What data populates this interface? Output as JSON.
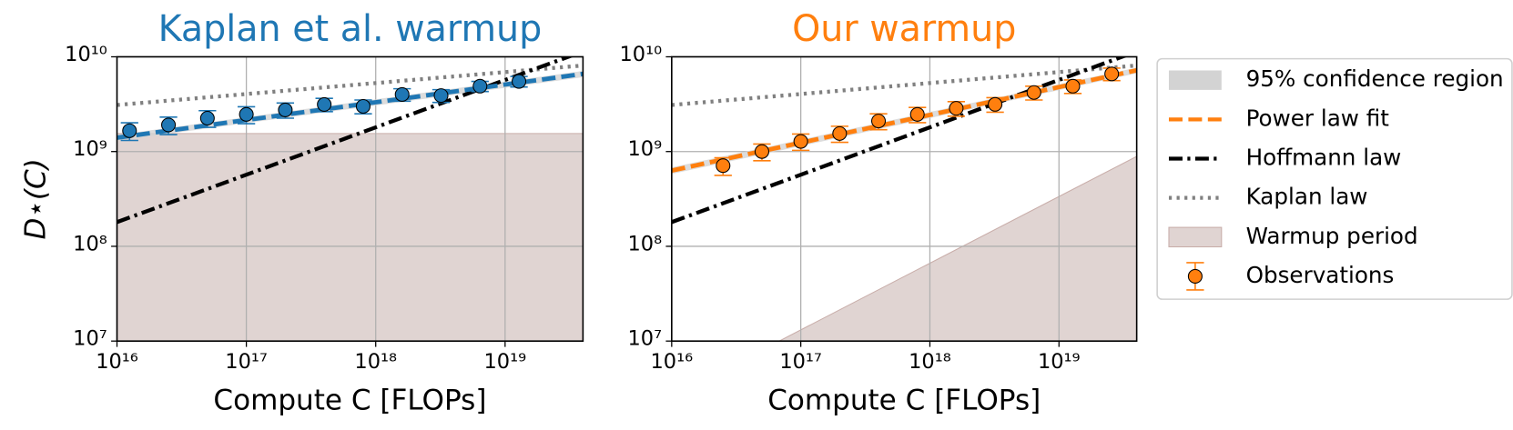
{
  "chart_data": [
    {
      "type": "line",
      "title": "Kaplan et al. warmup",
      "xlabel": "Compute C [FLOPs]",
      "ylabel": "D⋆(C)",
      "xscale": "log",
      "yscale": "log",
      "grid": true,
      "color": "#1f77b4",
      "xlim": [
        1e+16,
        4e+19
      ],
      "ylim": [
        10000000.0,
        10000000000.0
      ],
      "xticks": [
        {
          "value": 1e+16,
          "label": "10¹⁶"
        },
        {
          "value": 1e+17,
          "label": "10¹⁷"
        },
        {
          "value": 1e+18,
          "label": "10¹⁸"
        },
        {
          "value": 1e+19,
          "label": "10¹⁹"
        }
      ],
      "yticks": [
        {
          "value": 10000000.0,
          "label": "10⁷"
        },
        {
          "value": 100000000.0,
          "label": "10⁸"
        },
        {
          "value": 1000000000.0,
          "label": "10⁹"
        },
        {
          "value": 10000000000.0,
          "label": "10¹⁰"
        }
      ],
      "warmup": {
        "color": "#e0d4d2",
        "x": [
          1e+16,
          4e+19
        ],
        "values": [
          1550000000.0,
          1550000000.0
        ]
      },
      "confidence": {
        "color": "#d3d3d3",
        "x": [
          1e+16,
          4e+19
        ],
        "lower": [
          1300000000.0,
          6100000000.0
        ],
        "upper": [
          1500000000.0,
          7100000000.0
        ]
      },
      "kaplan": {
        "color": "#808080",
        "x": [
          1e+16,
          4e+19
        ],
        "values": [
          3100000000.0,
          8100000000.0
        ]
      },
      "hoffmann": {
        "color": "#000000",
        "x": [
          1e+16,
          4e+19
        ],
        "values": [
          180000000.0,
          11400000000.0
        ]
      },
      "fit": {
        "x": [
          1e+16,
          4e+19
        ],
        "values": [
          1400000000.0,
          6600000000.0
        ]
      },
      "observations": {
        "x": [
          1.25e+16,
          2.5e+16,
          5e+16,
          1e+17,
          2e+17,
          4e+17,
          8e+17,
          1.6e+18,
          3.2e+18,
          6.4e+18,
          1.28e+19
        ],
        "values": [
          1660000000.0,
          1910000000.0,
          2250000000.0,
          2470000000.0,
          2750000000.0,
          3140000000.0,
          3000000000.0,
          4000000000.0,
          3900000000.0,
          4900000000.0,
          5500000000.0
        ],
        "errors": [
          350000000.0,
          400000000.0,
          450000000.0,
          500000000.0,
          500000000.0,
          500000000.0,
          500000000.0,
          600000000.0,
          600000000.0,
          600000000.0,
          700000000.0
        ]
      }
    },
    {
      "type": "line",
      "title": "Our warmup",
      "xlabel": "Compute C [FLOPs]",
      "xscale": "log",
      "yscale": "log",
      "grid": true,
      "color": "#ff7f0e",
      "legend": "upper right outside",
      "xlim": [
        1e+16,
        4e+19
      ],
      "ylim": [
        10000000.0,
        10000000000.0
      ],
      "xticks": [
        {
          "value": 1e+16,
          "label": "10¹⁶"
        },
        {
          "value": 1e+17,
          "label": "10¹⁷"
        },
        {
          "value": 1e+18,
          "label": "10¹⁸"
        },
        {
          "value": 1e+19,
          "label": "10¹⁹"
        }
      ],
      "yticks": [
        {
          "value": 10000000.0,
          "label": "10⁷"
        },
        {
          "value": 100000000.0,
          "label": "10⁸"
        },
        {
          "value": 1000000000.0,
          "label": "10⁹"
        },
        {
          "value": 10000000000.0,
          "label": "10¹⁰"
        }
      ],
      "warmup": {
        "name": "Warmup period",
        "color": "#e0d4d2",
        "x": [
          6.8e+16,
          4e+19
        ],
        "values": [
          10000000.0,
          890000000.0
        ]
      },
      "confidence": {
        "name": "95% confidence region",
        "color": "#d3d3d3",
        "x": [
          1e+16,
          4e+19
        ],
        "lower": [
          580000000.0,
          6700000000.0
        ],
        "upper": [
          680000000.0,
          7700000000.0
        ]
      },
      "kaplan": {
        "name": "Kaplan law",
        "color": "#808080",
        "x": [
          1e+16,
          4e+19
        ],
        "values": [
          3100000000.0,
          8100000000.0
        ]
      },
      "hoffmann": {
        "name": "Hoffmann law",
        "color": "#000000",
        "x": [
          1e+16,
          4e+19
        ],
        "values": [
          180000000.0,
          11400000000.0
        ]
      },
      "fit": {
        "name": "Power law fit",
        "x": [
          1e+16,
          4e+19
        ],
        "values": [
          630000000.0,
          7200000000.0
        ]
      },
      "observations": {
        "name": "Observations",
        "x": [
          2.5e+16,
          5e+16,
          1e+17,
          2e+17,
          4e+17,
          8e+17,
          1.6e+18,
          3.2e+18,
          6.4e+18,
          1.28e+19,
          2.56e+19
        ],
        "values": [
          710000000.0,
          1000000000.0,
          1280000000.0,
          1550000000.0,
          2100000000.0,
          2470000000.0,
          2860000000.0,
          3150000000.0,
          4200000000.0,
          4900000000.0,
          6600000000.0
        ],
        "errors": [
          150000000.0,
          200000000.0,
          250000000.0,
          300000000.0,
          400000000.0,
          450000000.0,
          500000000.0,
          550000000.0,
          700000000.0,
          800000000.0,
          1000000000.0
        ]
      }
    }
  ]
}
